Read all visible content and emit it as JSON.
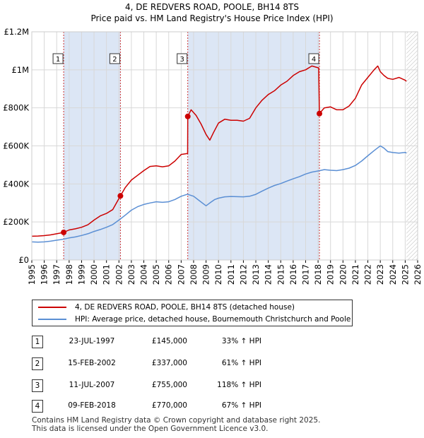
{
  "header": {
    "title_line1": "4, DE REDVERS ROAD, POOLE, BH14 8TS",
    "title_line2": "Price paid vs. HM Land Registry's House Price Index (HPI)"
  },
  "colors": {
    "property": "#cc0000",
    "hpi": "#5b8fd4",
    "shade": "#dce6f5",
    "marker_line": "#cc3333",
    "grid": "#d8d8d8"
  },
  "legend": {
    "property_label": "4, DE REDVERS ROAD, POOLE, BH14 8TS (detached house)",
    "hpi_label": "HPI: Average price, detached house, Bournemouth Christchurch and Poole"
  },
  "transactions": [
    {
      "num": "1",
      "date": "23-JUL-1997",
      "price": "£145,000",
      "hpi": "33% ↑ HPI"
    },
    {
      "num": "2",
      "date": "15-FEB-2002",
      "price": "£337,000",
      "hpi": "61% ↑ HPI"
    },
    {
      "num": "3",
      "date": "11-JUL-2007",
      "price": "£755,000",
      "hpi": "118% ↑ HPI"
    },
    {
      "num": "4",
      "date": "09-FEB-2018",
      "price": "£770,000",
      "hpi": "67% ↑ HPI"
    }
  ],
  "footer": {
    "line1": "Contains HM Land Registry data © Crown copyright and database right 2025.",
    "line2": "This data is licensed under the Open Government Licence v3.0."
  },
  "chart_data": {
    "type": "line",
    "xlim": [
      1995,
      2026
    ],
    "ylim": [
      0,
      1200000
    ],
    "y_ticks": [
      0,
      200000,
      400000,
      600000,
      800000,
      1000000,
      1200000
    ],
    "y_tick_labels": [
      "£0",
      "£200K",
      "£400K",
      "£600K",
      "£800K",
      "£1M",
      "£1.2M"
    ],
    "x_ticks": [
      1995,
      1996,
      1997,
      1998,
      1999,
      2000,
      2001,
      2002,
      2003,
      2004,
      2005,
      2006,
      2007,
      2008,
      2009,
      2010,
      2011,
      2012,
      2013,
      2014,
      2015,
      2016,
      2017,
      2018,
      2019,
      2020,
      2021,
      2022,
      2023,
      2024,
      2025,
      2026
    ],
    "x_tick_labels": [
      "1995",
      "1996",
      "1997",
      "1998",
      "1999",
      "2000",
      "2001",
      "2002",
      "2003",
      "2004",
      "2005",
      "2006",
      "2007",
      "2008",
      "2009",
      "2010",
      "2011",
      "2012",
      "2013",
      "2014",
      "2015",
      "2016",
      "2017",
      "2018",
      "2019",
      "2020",
      "2021",
      "2022",
      "2023",
      "2024",
      "2025",
      "2026"
    ],
    "shaded_periods": [
      [
        1997.56,
        2002.12
      ],
      [
        2007.53,
        2018.11
      ]
    ],
    "hatched_from": 2025.1,
    "sales": [
      {
        "label": "1",
        "x": 1997.56,
        "y": 145000
      },
      {
        "label": "2",
        "x": 2002.12,
        "y": 337000
      },
      {
        "label": "3",
        "x": 2007.53,
        "y": 755000
      },
      {
        "label": "4",
        "x": 2018.11,
        "y": 770000
      }
    ],
    "series": [
      {
        "name": "4, DE REDVERS ROAD, POOLE, BH14 8TS (detached house)",
        "x": [
          1995,
          1995.5,
          1996,
          1996.5,
          1997,
          1997.56,
          1998,
          1998.5,
          1999,
          1999.5,
          2000,
          2000.5,
          2001,
          2001.5,
          2002.12,
          2002.5,
          2003,
          2003.5,
          2004,
          2004.5,
          2005,
          2005.5,
          2006,
          2006.5,
          2007,
          2007.52,
          2007.53,
          2007.8,
          2008.2,
          2008.6,
          2009.0,
          2009.3,
          2009.6,
          2010,
          2010.5,
          2011,
          2011.5,
          2012,
          2012.5,
          2013,
          2013.5,
          2014,
          2014.5,
          2015,
          2015.5,
          2016,
          2016.5,
          2017,
          2017.5,
          2018.05,
          2018.11,
          2018.5,
          2019,
          2019.5,
          2020,
          2020.5,
          2021,
          2021.5,
          2022,
          2022.5,
          2022.8,
          2023.0,
          2023.3,
          2023.6,
          2024,
          2024.5,
          2025,
          2025.1
        ],
        "y": [
          125000,
          126000,
          128000,
          132000,
          138000,
          145000,
          158000,
          164000,
          172000,
          185000,
          210000,
          232000,
          245000,
          265000,
          337000,
          380000,
          420000,
          445000,
          470000,
          492000,
          495000,
          490000,
          495000,
          520000,
          555000,
          560000,
          755000,
          790000,
          760000,
          715000,
          660000,
          630000,
          670000,
          720000,
          740000,
          735000,
          735000,
          730000,
          745000,
          800000,
          840000,
          870000,
          890000,
          920000,
          940000,
          970000,
          990000,
          1000000,
          1020000,
          1010000,
          770000,
          800000,
          805000,
          790000,
          790000,
          810000,
          850000,
          920000,
          960000,
          1000000,
          1020000,
          990000,
          970000,
          955000,
          950000,
          960000,
          945000,
          940000
        ]
      },
      {
        "name": "HPI: Average price, detached house, Bournemouth Christchurch and Poole",
        "x": [
          1995,
          1995.5,
          1996,
          1996.5,
          1997,
          1997.5,
          1998,
          1998.5,
          1999,
          1999.5,
          2000,
          2000.5,
          2001,
          2001.5,
          2002,
          2002.5,
          2003,
          2003.5,
          2004,
          2004.5,
          2005,
          2005.5,
          2006,
          2006.5,
          2007,
          2007.5,
          2008,
          2008.5,
          2009,
          2009.3,
          2009.7,
          2010,
          2010.5,
          2011,
          2011.5,
          2012,
          2012.5,
          2013,
          2013.5,
          2014,
          2014.5,
          2015,
          2015.5,
          2016,
          2016.5,
          2017,
          2017.5,
          2018,
          2018.5,
          2019,
          2019.5,
          2020,
          2020.5,
          2021,
          2021.5,
          2022,
          2022.5,
          2022.8,
          2023.0,
          2023.3,
          2023.6,
          2024,
          2024.5,
          2025,
          2025.1
        ],
        "y": [
          95000,
          94000,
          95000,
          99000,
          104000,
          109000,
          116000,
          121000,
          129000,
          138000,
          150000,
          160000,
          172000,
          186000,
          210000,
          235000,
          262000,
          280000,
          292000,
          300000,
          306000,
          303000,
          306000,
          318000,
          335000,
          346000,
          335000,
          310000,
          285000,
          300000,
          318000,
          325000,
          332000,
          334000,
          333000,
          332000,
          335000,
          345000,
          362000,
          378000,
          392000,
          402000,
          415000,
          427000,
          438000,
          452000,
          462000,
          468000,
          475000,
          472000,
          470000,
          475000,
          483000,
          497000,
          520000,
          548000,
          575000,
          590000,
          600000,
          588000,
          570000,
          565000,
          562000,
          566000,
          562000
        ]
      }
    ]
  }
}
